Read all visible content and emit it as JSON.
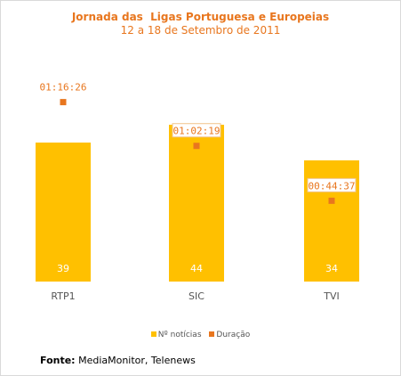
{
  "chart_data": {
    "type": "bar",
    "title": "Jornada das  Ligas Portuguesa e Europeias",
    "subtitle": "12 a 18 de Setembro de 2011",
    "categories": [
      "RTP1",
      "SIC",
      "TVI"
    ],
    "series": [
      {
        "name": "Nº notícias",
        "type": "bar",
        "values": [
          39,
          44,
          34
        ],
        "color": "#ffc000"
      },
      {
        "name": "Duração",
        "type": "scatter",
        "values": [
          "01:16:26",
          "01:02:19",
          "00:44:37"
        ],
        "color": "#e8761e"
      }
    ],
    "ylim": [
      0,
      58
    ],
    "legend": "bottom",
    "grid": false
  },
  "source": {
    "label": "Fonte:",
    "text": " MediaMonitor, Telenews"
  }
}
